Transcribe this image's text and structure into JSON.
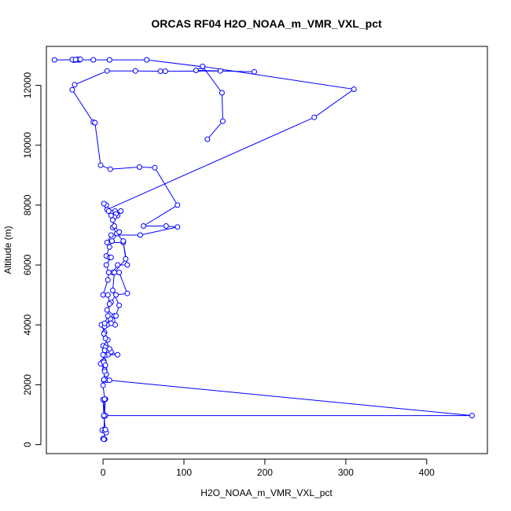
{
  "chart_data": {
    "type": "line",
    "title": "ORCAS RF04 H2O_NOAA_m_VMR_VXL_pct",
    "xlabel": "H2O_NOAA_m_VMR_VXL_pct",
    "ylabel": "Altitude (m)",
    "xlim": [
      -70,
      475
    ],
    "ylim": [
      -300,
      13300
    ],
    "xticks": [
      0,
      100,
      200,
      300,
      400
    ],
    "yticks": [
      0,
      2000,
      4000,
      6000,
      8000,
      10000,
      12000
    ],
    "xtick_labels": [
      "0",
      "100",
      "200",
      "300",
      "400"
    ],
    "ytick_labels": [
      "0",
      "2000",
      "4000",
      "6000",
      "8000",
      "10000",
      "12000"
    ],
    "grid": false,
    "marker": "open-circle",
    "series_color": "#0000ff",
    "series": [
      {
        "points": [
          [
            -60,
            12850
          ],
          [
            -35,
            12850
          ],
          [
            -32,
            12850
          ],
          [
            -29,
            12850
          ],
          [
            -12,
            12850
          ],
          [
            8,
            12850
          ],
          [
            54,
            12850
          ],
          [
            123,
            12620
          ],
          [
            115,
            12500
          ],
          [
            187,
            12450
          ],
          [
            145,
            12480
          ],
          [
            77,
            12470
          ],
          [
            71,
            12470
          ],
          [
            40,
            12480
          ],
          [
            5,
            12480
          ],
          [
            -35,
            12020
          ],
          [
            -38,
            11850
          ],
          [
            -12,
            10770
          ],
          [
            -10,
            10750
          ],
          [
            -3,
            9330
          ],
          [
            9,
            9200
          ],
          [
            45,
            9270
          ],
          [
            64,
            9250
          ],
          [
            92,
            8000
          ],
          [
            50,
            7300
          ],
          [
            78,
            7300
          ],
          [
            92,
            7270
          ],
          [
            46,
            7000
          ],
          [
            10,
            7000
          ],
          [
            5,
            6750
          ],
          [
            25,
            6750
          ],
          [
            30,
            6000
          ],
          [
            18,
            6000
          ],
          [
            12,
            5750
          ],
          [
            20,
            5750
          ],
          [
            30,
            5050
          ],
          [
            16,
            5000
          ],
          [
            10,
            4750
          ],
          [
            5,
            4500
          ],
          [
            14,
            4300
          ],
          [
            15,
            4000
          ],
          [
            10,
            4050
          ],
          [
            5,
            4000
          ],
          [
            1,
            4020
          ],
          [
            -2,
            4000
          ],
          [
            2,
            3750
          ],
          [
            6,
            3500
          ],
          [
            0,
            3300
          ],
          [
            3,
            3250
          ],
          [
            10,
            3100
          ],
          [
            18,
            3000
          ],
          [
            6,
            3000
          ],
          [
            2,
            2980
          ],
          [
            1,
            2800
          ],
          [
            -1,
            2750
          ],
          [
            -3,
            2700
          ],
          [
            2,
            2500
          ],
          [
            4,
            2350
          ],
          [
            5,
            2150
          ],
          [
            1,
            2150
          ],
          [
            8,
            2150
          ],
          [
            456,
            970
          ],
          [
            3,
            970
          ],
          [
            1,
            950
          ],
          [
            0,
            1500
          ],
          [
            2,
            1510
          ],
          [
            3,
            1520
          ],
          [
            1,
            500
          ],
          [
            -1,
            480
          ],
          [
            2,
            450
          ],
          [
            4,
            400
          ],
          [
            0,
            200
          ],
          [
            2,
            180
          ]
        ]
      },
      {
        "points": [
          [
            129,
            10200
          ],
          [
            148,
            10800
          ],
          [
            147,
            11750
          ],
          [
            123,
            12630
          ],
          [
            310,
            11870
          ],
          [
            261,
            10930
          ],
          [
            5,
            7850
          ],
          [
            10,
            7750
          ],
          [
            15,
            7800
          ],
          [
            18,
            7650
          ],
          [
            22,
            7800
          ],
          [
            16,
            7700
          ],
          [
            14,
            7600
          ],
          [
            12,
            7250
          ],
          [
            17,
            7050
          ],
          [
            25,
            6800
          ],
          [
            28,
            6200
          ],
          [
            14,
            5750
          ],
          [
            12,
            5150
          ],
          [
            20,
            4650
          ],
          [
            16,
            4300
          ],
          [
            9,
            4200
          ],
          [
            2,
            3950
          ],
          [
            1,
            3700
          ],
          [
            3,
            3550
          ],
          [
            8,
            3200
          ],
          [
            2,
            3150
          ],
          [
            0,
            3000
          ],
          [
            1,
            2750
          ],
          [
            3,
            2650
          ],
          [
            2,
            2450
          ],
          [
            1,
            2170
          ],
          [
            0,
            1980
          ],
          [
            2,
            1520
          ],
          [
            1,
            970
          ],
          [
            3,
            500
          ],
          [
            1,
            180
          ]
        ]
      },
      {
        "points": [
          [
            -31,
            12870
          ],
          [
            -36,
            12840
          ],
          [
            -38,
            12860
          ],
          [
            -34,
            12860
          ],
          [
            -28,
            12870
          ]
        ]
      },
      {
        "points": [
          [
            4,
            8000
          ],
          [
            1,
            8050
          ],
          [
            7,
            7800
          ],
          [
            10,
            7650
          ],
          [
            12,
            7500
          ],
          [
            14,
            7300
          ],
          [
            20,
            7100
          ],
          [
            11,
            6800
          ],
          [
            8,
            6600
          ],
          [
            4,
            6300
          ],
          [
            8,
            6250
          ],
          [
            10,
            6250
          ],
          [
            4,
            6000
          ],
          [
            7,
            5750
          ],
          [
            6,
            5500
          ],
          [
            0,
            5000
          ],
          [
            6,
            5000
          ],
          [
            8,
            4700
          ],
          [
            6,
            4300
          ],
          [
            2,
            4050
          ]
        ]
      }
    ]
  }
}
